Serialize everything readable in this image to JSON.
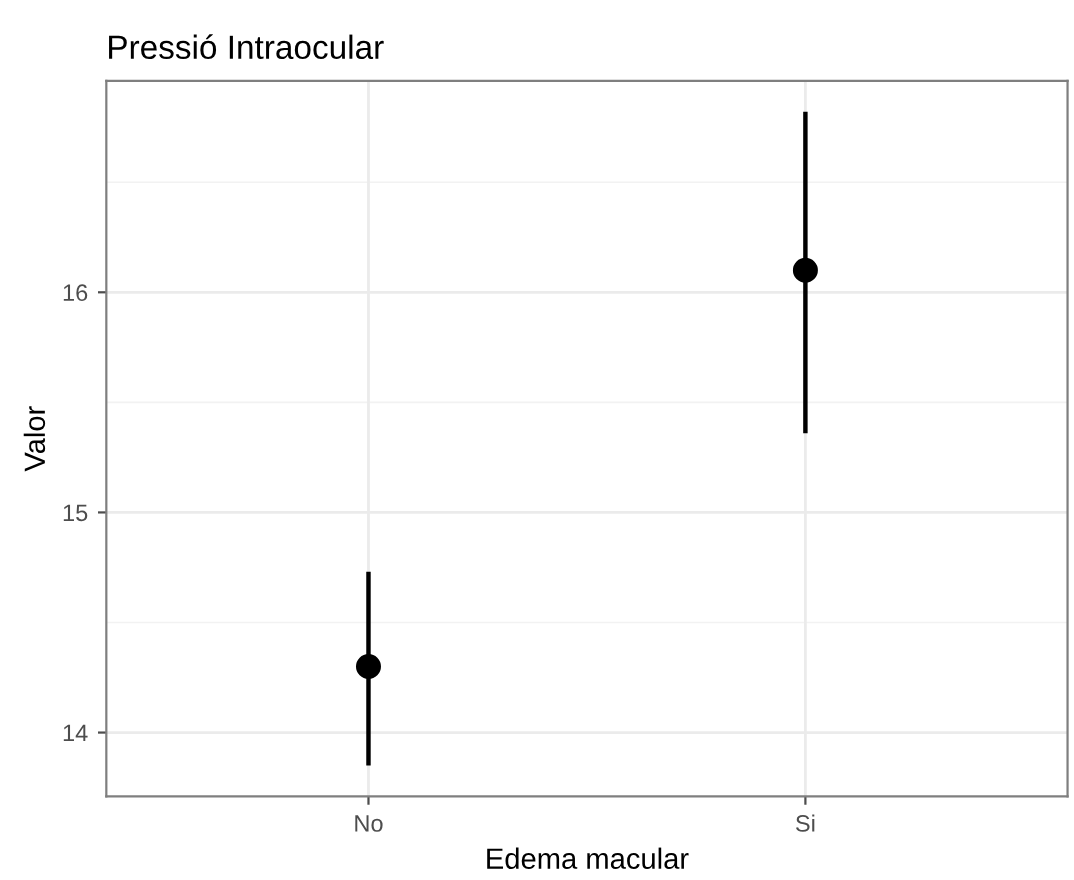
{
  "chart_data": {
    "type": "scatter",
    "title": "Pressió Intraocular",
    "xlabel": "Edema macular",
    "ylabel": "Valor",
    "categories": [
      "No",
      "Si"
    ],
    "series": [
      {
        "color": "#000000",
        "values": [
          14.3,
          16.1
        ],
        "errors": [
          [
            13.85,
            14.73
          ],
          [
            15.36,
            16.82
          ]
        ]
      }
    ],
    "ylim": [
      13.71,
      16.96
    ],
    "yticks": [
      14,
      15,
      16
    ],
    "grid": true,
    "marker": "circle"
  }
}
